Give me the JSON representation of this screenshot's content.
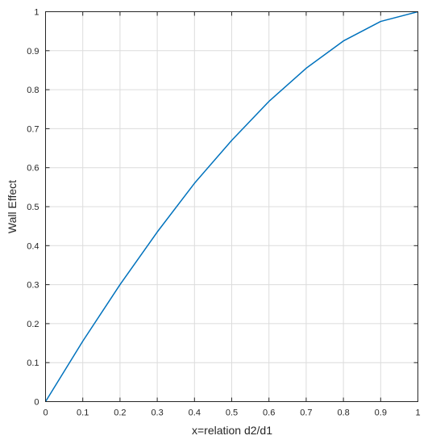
{
  "chart_data": {
    "type": "line",
    "title": "",
    "xlabel": "x=relation d2/d1",
    "ylabel": "Wall Effect",
    "xlim": [
      0,
      1
    ],
    "ylim": [
      0,
      1
    ],
    "grid": true,
    "x_ticks": [
      "0",
      "0.1",
      "0.2",
      "0.3",
      "0.4",
      "0.5",
      "0.6",
      "0.7",
      "0.8",
      "0.9",
      "1"
    ],
    "y_ticks": [
      "0",
      "0.1",
      "0.2",
      "0.3",
      "0.4",
      "0.5",
      "0.6",
      "0.7",
      "0.8",
      "0.9",
      "1"
    ],
    "series": [
      {
        "color": "#0072bd",
        "x": [
          0,
          0.1,
          0.2,
          0.3,
          0.4,
          0.5,
          0.6,
          0.7,
          0.8,
          0.9,
          1.0
        ],
        "y": [
          0,
          0.155,
          0.3,
          0.435,
          0.56,
          0.67,
          0.77,
          0.855,
          0.925,
          0.975,
          1.0
        ]
      }
    ]
  }
}
